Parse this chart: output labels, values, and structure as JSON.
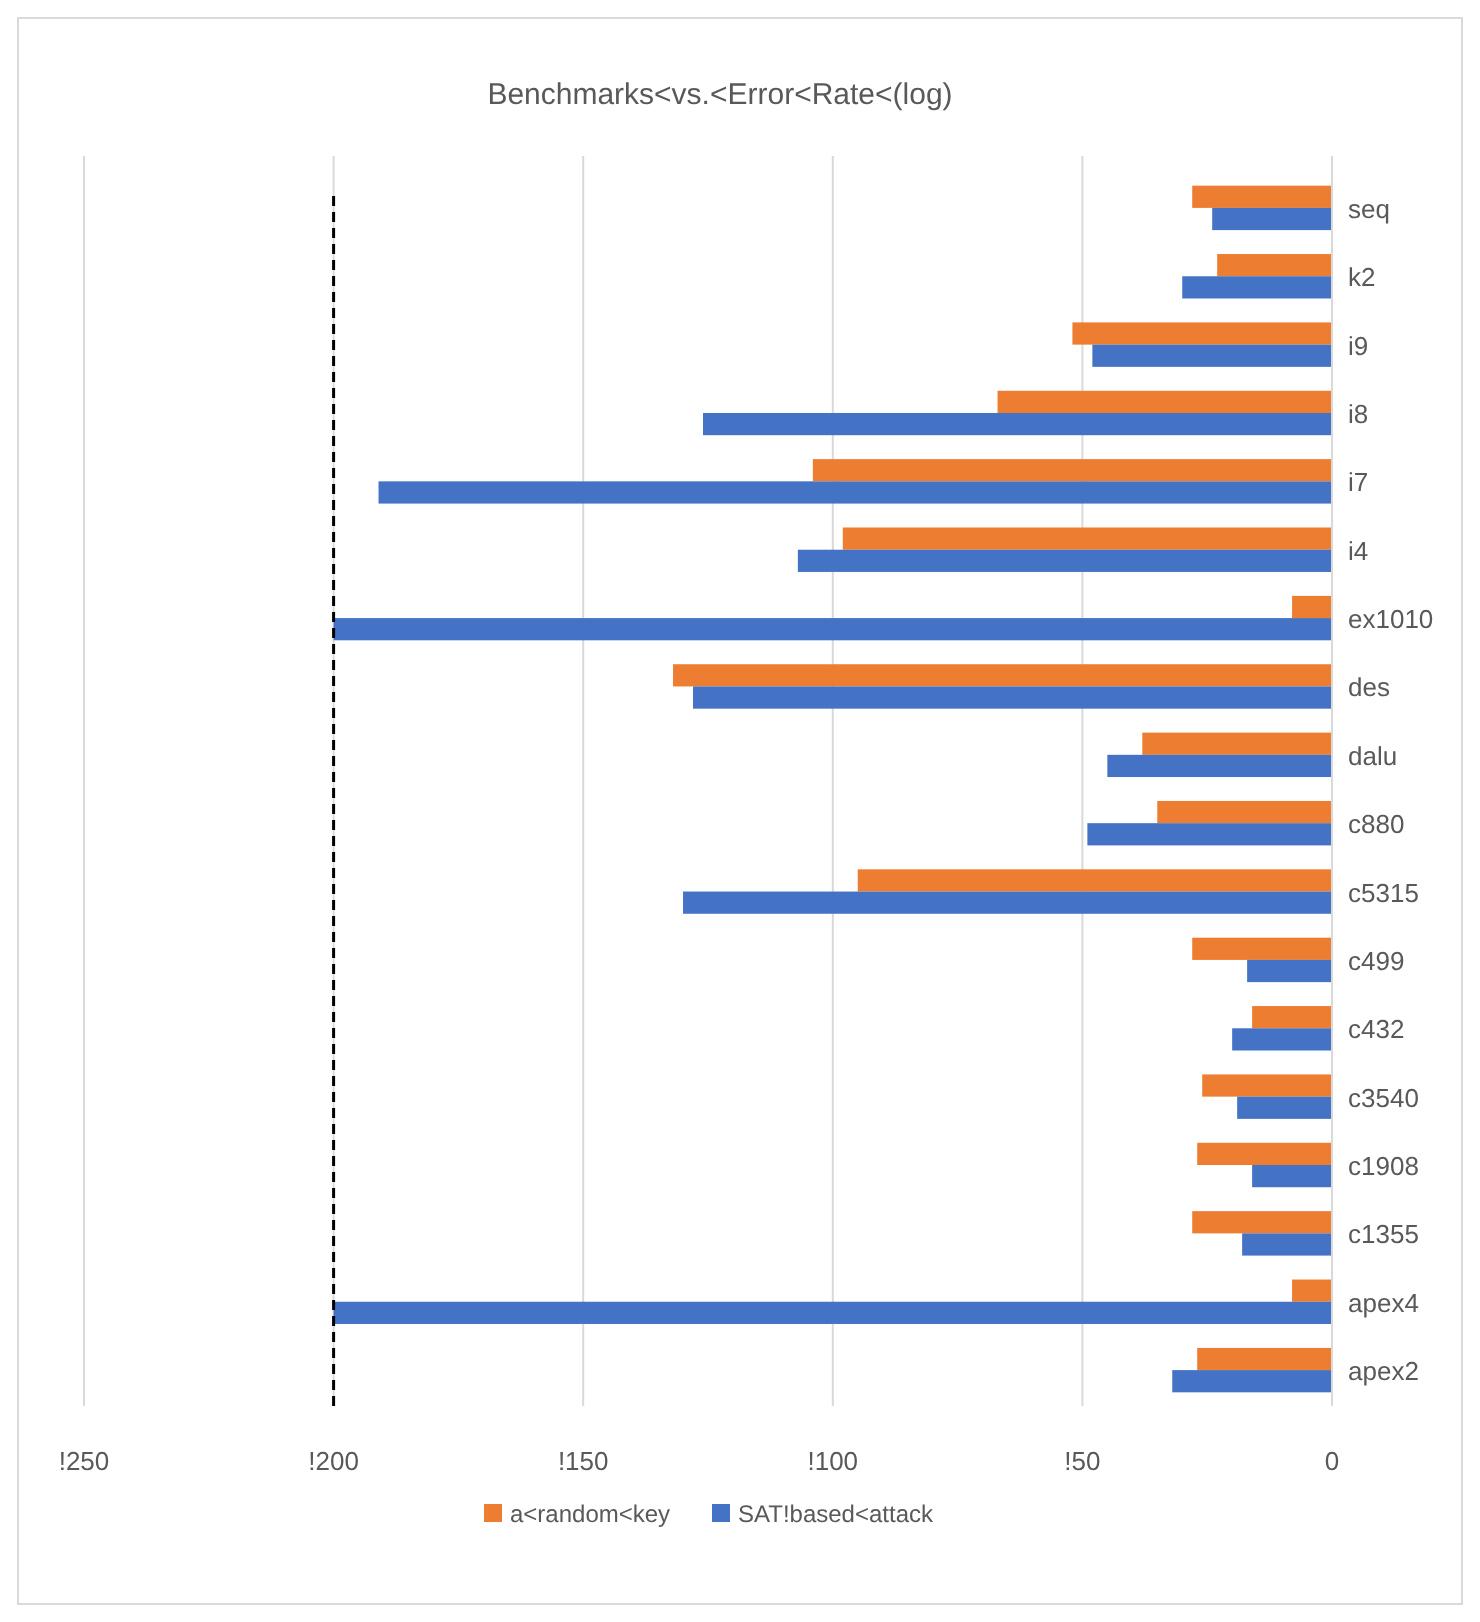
{
  "chart_data": {
    "type": "bar",
    "orientation": "horizontal",
    "title": "Benchmarks<vs.<Error<Rate<(log)",
    "categories": [
      "seq",
      "k2",
      "i9",
      "i8",
      "i7",
      "i4",
      "ex1010",
      "des",
      "dalu",
      "c880",
      "c5315",
      "c499",
      "c432",
      "c3540",
      "c1908",
      "c1355",
      "apex4",
      "apex2"
    ],
    "series": [
      {
        "name": "a<random<key",
        "color": "#ed7d31",
        "values": [
          -28,
          -23,
          -52,
          -67,
          -104,
          -98,
          -8,
          -132,
          -38,
          -35,
          -95,
          -28,
          -16,
          -26,
          -27,
          -28,
          -8,
          -27
        ]
      },
      {
        "name": "SAT!based<attack",
        "color": "#4472c4",
        "values": [
          -24,
          -30,
          -48,
          -126,
          -191,
          -107,
          -200,
          -128,
          -45,
          -49,
          -130,
          -17,
          -20,
          -19,
          -16,
          -18,
          -200,
          -32
        ]
      }
    ],
    "xlim": [
      -250,
      0
    ],
    "xticks": [
      {
        "value": -250,
        "label": "!250"
      },
      {
        "value": -200,
        "label": "!200"
      },
      {
        "value": -150,
        "label": "!150"
      },
      {
        "value": -100,
        "label": "!100"
      },
      {
        "value": -50,
        "label": "!50"
      },
      0
    ],
    "ref_lines": [
      {
        "axis": "x",
        "value": -200,
        "color": "#000000",
        "line_style": "dashed"
      }
    ],
    "grid": "x",
    "legend": "bottom"
  }
}
